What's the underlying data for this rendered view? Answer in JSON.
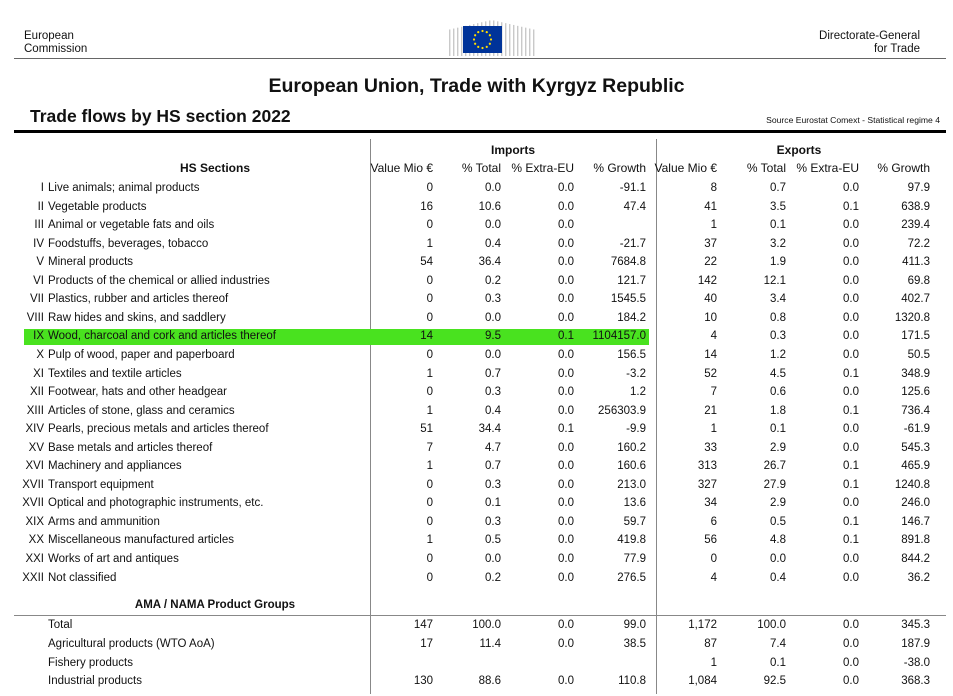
{
  "header": {
    "left_line1": "European",
    "left_line2": "Commission",
    "right_line1": "Directorate-General",
    "right_line2": "for Trade",
    "logo_icon": "eu-flag-icon",
    "logo_color": "#003399",
    "star_color": "#FFDD00"
  },
  "title": "European Union, Trade with Kyrgyz Republic",
  "subtitle": "Trade flows by HS section 2022",
  "source": "Source Eurostat Comext  - Statistical regime 4",
  "columns": {
    "hs_sections": "HS Sections",
    "imports": "Imports",
    "exports": "Exports",
    "value": "Value Mio €",
    "total": "% Total",
    "extra": "% Extra-EU",
    "growth": "% Growth"
  },
  "highlight_color": "#49e21f",
  "rows": [
    {
      "num": "I",
      "desc": "Live animals;  animal products",
      "imp": [
        "0",
        "0.0",
        "0.0",
        "-91.1"
      ],
      "exp": [
        "8",
        "0.7",
        "0.0",
        "97.9"
      ]
    },
    {
      "num": "II",
      "desc": "Vegetable products",
      "imp": [
        "16",
        "10.6",
        "0.0",
        "47.4"
      ],
      "exp": [
        "41",
        "3.5",
        "0.1",
        "638.9"
      ]
    },
    {
      "num": "III",
      "desc": "Animal or vegetable fats and oils",
      "imp": [
        "0",
        "0.0",
        "0.0",
        ""
      ],
      "exp": [
        "1",
        "0.1",
        "0.0",
        "239.4"
      ]
    },
    {
      "num": "IV",
      "desc": "Foodstuffs, beverages, tobacco",
      "imp": [
        "1",
        "0.4",
        "0.0",
        "-21.7"
      ],
      "exp": [
        "37",
        "3.2",
        "0.0",
        "72.2"
      ]
    },
    {
      "num": "V",
      "desc": "Mineral products",
      "imp": [
        "54",
        "36.4",
        "0.0",
        "7684.8"
      ],
      "exp": [
        "22",
        "1.9",
        "0.0",
        "411.3"
      ]
    },
    {
      "num": "VI",
      "desc": "Products of the chemical or allied industries",
      "imp": [
        "0",
        "0.2",
        "0.0",
        "121.7"
      ],
      "exp": [
        "142",
        "12.1",
        "0.0",
        "69.8"
      ]
    },
    {
      "num": "VII",
      "desc": "Plastics, rubber and articles thereof",
      "imp": [
        "0",
        "0.3",
        "0.0",
        "1545.5"
      ],
      "exp": [
        "40",
        "3.4",
        "0.0",
        "402.7"
      ]
    },
    {
      "num": "VIII",
      "desc": "Raw hides and skins, and saddlery",
      "imp": [
        "0",
        "0.0",
        "0.0",
        "184.2"
      ],
      "exp": [
        "10",
        "0.8",
        "0.0",
        "1320.8"
      ]
    },
    {
      "num": "IX",
      "desc": "Wood, charcoal and cork and articles thereof",
      "imp": [
        "14",
        "9.5",
        "0.1",
        "1104157.0"
      ],
      "exp": [
        "4",
        "0.3",
        "0.0",
        "171.5"
      ],
      "highlight": true
    },
    {
      "num": "X",
      "desc": "Pulp of wood, paper and paperboard",
      "imp": [
        "0",
        "0.0",
        "0.0",
        "156.5"
      ],
      "exp": [
        "14",
        "1.2",
        "0.0",
        "50.5"
      ]
    },
    {
      "num": "XI",
      "desc": "Textiles and textile articles",
      "imp": [
        "1",
        "0.7",
        "0.0",
        "-3.2"
      ],
      "exp": [
        "52",
        "4.5",
        "0.1",
        "348.9"
      ]
    },
    {
      "num": "XII",
      "desc": "Footwear, hats and other headgear",
      "imp": [
        "0",
        "0.3",
        "0.0",
        "1.2"
      ],
      "exp": [
        "7",
        "0.6",
        "0.0",
        "125.6"
      ]
    },
    {
      "num": "XIII",
      "desc": "Articles of stone, glass and ceramics",
      "imp": [
        "1",
        "0.4",
        "0.0",
        "256303.9"
      ],
      "exp": [
        "21",
        "1.8",
        "0.1",
        "736.4"
      ]
    },
    {
      "num": "XIV",
      "desc": "Pearls, precious metals and articles thereof",
      "imp": [
        "51",
        "34.4",
        "0.1",
        "-9.9"
      ],
      "exp": [
        "1",
        "0.1",
        "0.0",
        "-61.9"
      ]
    },
    {
      "num": "XV",
      "desc": "Base metals and articles thereof",
      "imp": [
        "7",
        "4.7",
        "0.0",
        "160.2"
      ],
      "exp": [
        "33",
        "2.9",
        "0.0",
        "545.3"
      ]
    },
    {
      "num": "XVI",
      "desc": "Machinery and appliances",
      "imp": [
        "1",
        "0.7",
        "0.0",
        "160.6"
      ],
      "exp": [
        "313",
        "26.7",
        "0.1",
        "465.9"
      ]
    },
    {
      "num": "XVII",
      "desc": "Transport equipment",
      "imp": [
        "0",
        "0.3",
        "0.0",
        "213.0"
      ],
      "exp": [
        "327",
        "27.9",
        "0.1",
        "1240.8"
      ]
    },
    {
      "num": "XVII",
      "desc": "Optical and photographic instruments, etc.",
      "imp": [
        "0",
        "0.1",
        "0.0",
        "13.6"
      ],
      "exp": [
        "34",
        "2.9",
        "0.0",
        "246.0"
      ]
    },
    {
      "num": "XIX",
      "desc": "Arms and ammunition",
      "imp": [
        "0",
        "0.3",
        "0.0",
        "59.7"
      ],
      "exp": [
        "6",
        "0.5",
        "0.1",
        "146.7"
      ]
    },
    {
      "num": "XX",
      "desc": "Miscellaneous manufactured articles",
      "imp": [
        "1",
        "0.5",
        "0.0",
        "419.8"
      ],
      "exp": [
        "56",
        "4.8",
        "0.1",
        "891.8"
      ]
    },
    {
      "num": "XXI",
      "desc": "Works of art and antiques",
      "imp": [
        "0",
        "0.0",
        "0.0",
        "77.9"
      ],
      "exp": [
        "0",
        "0.0",
        "0.0",
        "844.2"
      ]
    },
    {
      "num": "XXII",
      "desc": "Not classified",
      "imp": [
        "0",
        "0.2",
        "0.0",
        "276.5"
      ],
      "exp": [
        "4",
        "0.4",
        "0.0",
        "36.2"
      ]
    }
  ],
  "groups_heading": "AMA / NAMA Product Groups",
  "groups": [
    {
      "desc": "Total",
      "imp": [
        "147",
        "100.0",
        "0.0",
        "99.0"
      ],
      "exp": [
        "1,172",
        "100.0",
        "0.0",
        "345.3"
      ]
    },
    {
      "desc": "Agricultural products (WTO AoA)",
      "imp": [
        "17",
        "11.4",
        "0.0",
        "38.5"
      ],
      "exp": [
        "87",
        "7.4",
        "0.0",
        "187.9"
      ]
    },
    {
      "desc": "Fishery products",
      "imp": [
        "",
        "",
        "",
        ""
      ],
      "exp": [
        "1",
        "0.1",
        "0.0",
        "-38.0"
      ]
    },
    {
      "desc": "Industrial products",
      "imp": [
        "130",
        "88.6",
        "0.0",
        "110.8"
      ],
      "exp": [
        "1,084",
        "92.5",
        "0.0",
        "368.3"
      ]
    }
  ]
}
